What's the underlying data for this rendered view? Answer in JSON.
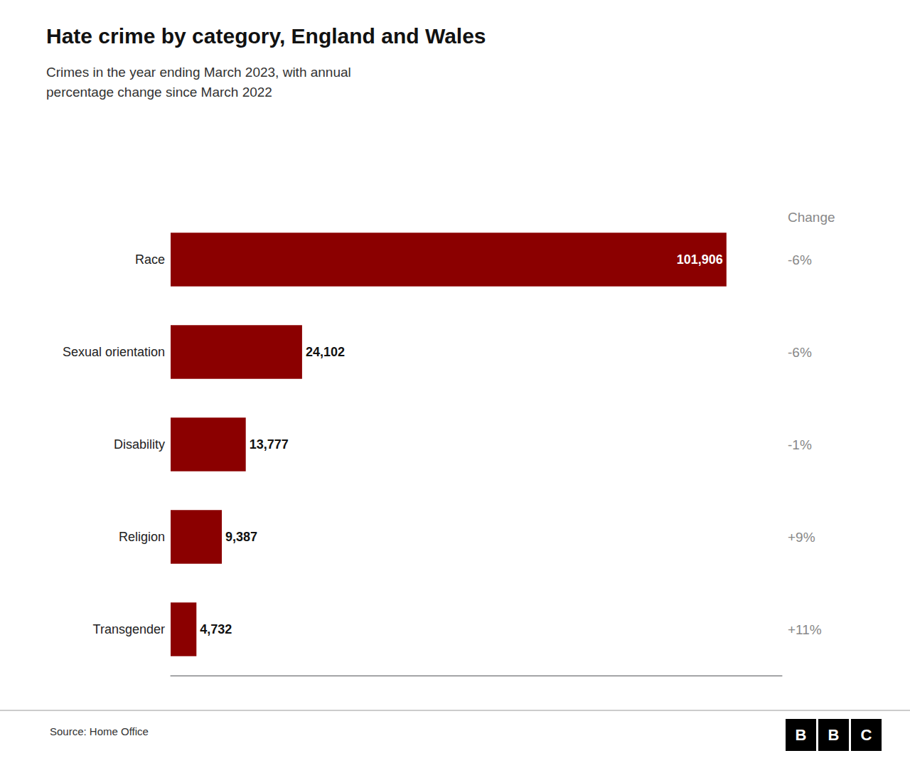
{
  "chart_data": {
    "type": "bar",
    "orientation": "horizontal",
    "title": "Hate crime by category, England and Wales",
    "subtitle": "Crimes in the year ending March 2023, with annual\npercentage change since March 2022",
    "categories": [
      "Race",
      "Sexual orientation",
      "Disability",
      "Religion",
      "Transgender"
    ],
    "values": [
      101906,
      24102,
      13777,
      9387,
      4732
    ],
    "value_labels": [
      "101,906",
      "24,102",
      "13,777",
      "9,387",
      "4,732"
    ],
    "data_labels": true,
    "color": "#8B0000",
    "xlim": [
      0,
      112096.6
    ],
    "tick_labels": "y",
    "grid": false,
    "change_header": "Change",
    "changes": [
      "-6%",
      "-6%",
      "-1%",
      "+9%",
      "+11%"
    ],
    "source": "Source: Home Office",
    "logo": "BBC"
  }
}
